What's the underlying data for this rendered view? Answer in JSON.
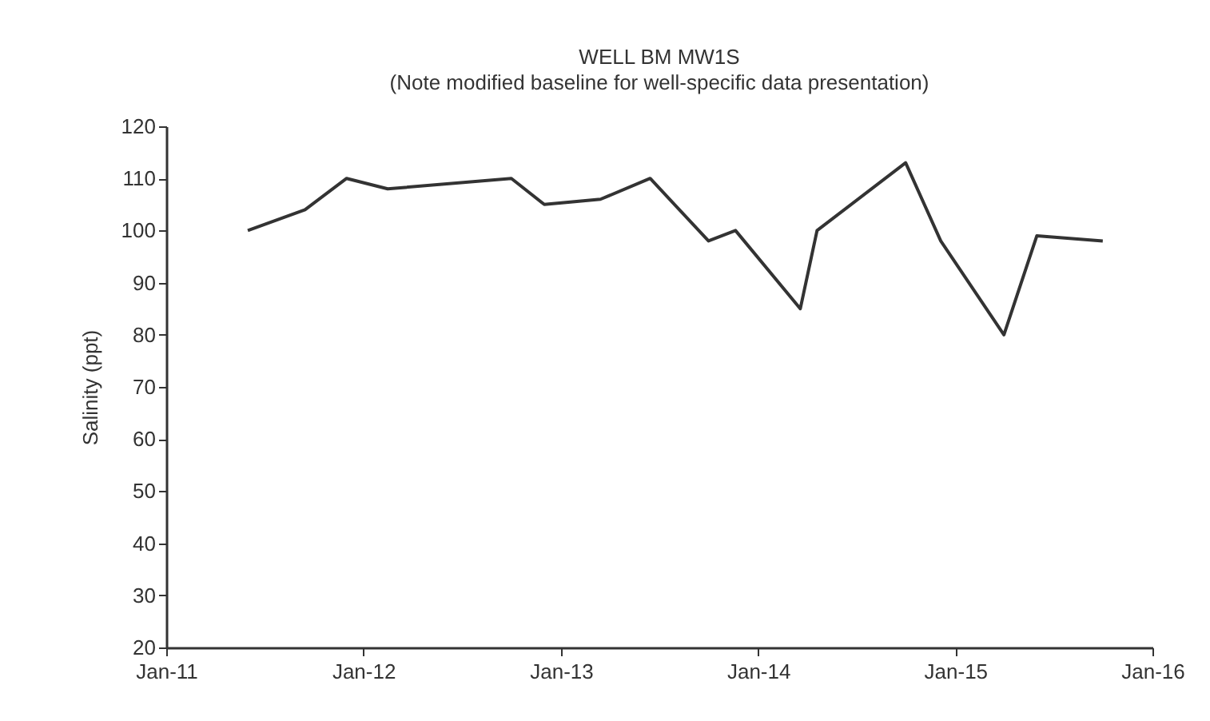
{
  "chart_data": {
    "type": "line",
    "title": "WELL BM MW1S",
    "subtitle": "(Note modified baseline for well-specific data presentation)",
    "ylabel": "Salinity (ppt)",
    "x": [
      "2011-06-01",
      "2011-09-15",
      "2011-12-01",
      "2012-02-15",
      "2012-10-01",
      "2012-12-01",
      "2013-03-15",
      "2013-06-15",
      "2013-10-01",
      "2013-11-20",
      "2014-03-20",
      "2014-04-20",
      "2014-10-01",
      "2014-12-05",
      "2015-04-01",
      "2015-06-01",
      "2015-10-01"
    ],
    "series": [
      {
        "color": "#333333",
        "values": [
          100,
          104,
          110,
          108,
          110,
          105,
          106,
          110,
          98,
          100,
          85,
          100,
          113,
          98,
          80,
          99,
          98
        ]
      }
    ],
    "xlim": [
      "2011-01-01",
      "2016-01-01"
    ],
    "xticks": [
      {
        "value": "2011-01-01",
        "label": "Jan-11"
      },
      {
        "value": "2012-01-01",
        "label": "Jan-12"
      },
      {
        "value": "2013-01-01",
        "label": "Jan-13"
      },
      {
        "value": "2014-01-01",
        "label": "Jan-14"
      },
      {
        "value": "2015-01-01",
        "label": "Jan-15"
      },
      {
        "value": "2016-01-01",
        "label": "Jan-16"
      }
    ],
    "ylim": [
      20,
      120
    ],
    "yticks": [
      20,
      30,
      40,
      50,
      60,
      70,
      80,
      90,
      100,
      110,
      120
    ],
    "grid": false,
    "marker": "none",
    "line_style": "solid"
  }
}
